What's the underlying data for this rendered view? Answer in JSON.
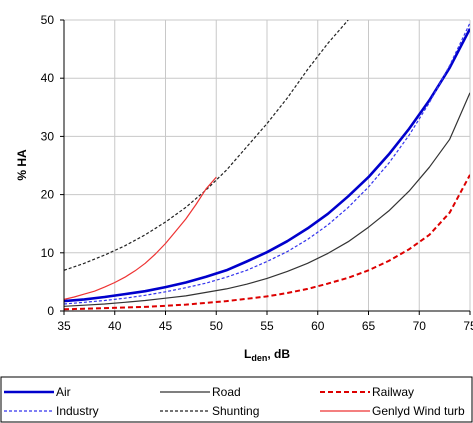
{
  "chart_data": {
    "type": "line",
    "ylabel": "% HA",
    "xlabel_main": "L",
    "xlabel_sub": "den",
    "xlabel_unit": ", dB",
    "xlim": [
      35,
      75
    ],
    "ylim": [
      0,
      50
    ],
    "xticks": [
      35,
      40,
      45,
      50,
      55,
      60,
      65,
      70,
      75
    ],
    "yticks": [
      0,
      10,
      20,
      30,
      40,
      50
    ],
    "grid": true,
    "legend_position": "bottom",
    "series": [
      {
        "name": "Air",
        "color": "#0000cc",
        "dash": "solid",
        "width": 2.6,
        "x": [
          35,
          37,
          39,
          41,
          43,
          45,
          47,
          49,
          51,
          53,
          55,
          57,
          59,
          61,
          63,
          65,
          67,
          69,
          71,
          73,
          75
        ],
        "y": [
          1.7,
          2.0,
          2.4,
          2.9,
          3.4,
          4.1,
          4.9,
          5.9,
          7.0,
          8.5,
          10.1,
          12.0,
          14.2,
          16.7,
          19.7,
          23.0,
          26.9,
          31.3,
          36.2,
          41.8,
          48.5
        ]
      },
      {
        "name": "Road",
        "color": "#333333",
        "dash": "solid",
        "width": 1.2,
        "x": [
          35,
          37,
          39,
          41,
          43,
          45,
          47,
          49,
          51,
          53,
          55,
          57,
          59,
          61,
          63,
          65,
          67,
          69,
          71,
          73,
          75
        ],
        "y": [
          0.8,
          1.0,
          1.2,
          1.5,
          1.8,
          2.2,
          2.6,
          3.2,
          3.8,
          4.6,
          5.6,
          6.8,
          8.2,
          9.9,
          11.9,
          14.4,
          17.2,
          20.6,
          24.7,
          29.5,
          37.5
        ]
      },
      {
        "name": "Railway",
        "color": "#dd0000",
        "dash": "5,3",
        "width": 2.0,
        "x": [
          35,
          37,
          39,
          41,
          43,
          45,
          47,
          49,
          51,
          53,
          55,
          57,
          59,
          61,
          63,
          65,
          67,
          69,
          71,
          73,
          75
        ],
        "y": [
          0.3,
          0.4,
          0.5,
          0.6,
          0.7,
          0.9,
          1.1,
          1.4,
          1.7,
          2.1,
          2.5,
          3.1,
          3.8,
          4.7,
          5.7,
          7.0,
          8.6,
          10.6,
          13.1,
          16.9,
          23.4
        ]
      },
      {
        "name": "Industry",
        "color": "#3333ee",
        "dash": "3,2",
        "width": 1.2,
        "x": [
          35,
          37,
          39,
          41,
          43,
          45,
          47,
          49,
          51,
          53,
          55,
          57,
          59,
          61,
          63,
          65,
          67,
          69,
          71,
          73,
          75
        ],
        "y": [
          1.2,
          1.5,
          1.8,
          2.2,
          2.7,
          3.3,
          4.0,
          4.8,
          5.8,
          7.0,
          8.5,
          10.2,
          12.3,
          14.8,
          17.8,
          21.3,
          25.4,
          30.2,
          35.8,
          42.2,
          49.5
        ]
      },
      {
        "name": "Shunting",
        "color": "#222222",
        "dash": "3,2",
        "width": 1.2,
        "x": [
          35,
          37,
          39,
          41,
          43,
          45,
          47,
          49,
          51,
          53,
          55,
          57,
          59,
          61,
          63
        ],
        "y": [
          7.0,
          8.2,
          9.6,
          11.2,
          13.1,
          15.3,
          17.8,
          20.8,
          24.2,
          28.2,
          32.2,
          36.6,
          41.5,
          46.0,
          50.0
        ]
      },
      {
        "name": "Genlyd Wind turb",
        "color": "#ee3333",
        "dash": "solid",
        "width": 1.2,
        "x": [
          35,
          36,
          37,
          38,
          39,
          40,
          41,
          42,
          43,
          44,
          45,
          46,
          47,
          48,
          49,
          50
        ],
        "y": [
          2.0,
          2.4,
          2.9,
          3.4,
          4.1,
          4.9,
          5.8,
          6.9,
          8.2,
          9.8,
          11.6,
          13.7,
          15.8,
          18.3,
          21.0,
          23.0
        ]
      }
    ]
  }
}
